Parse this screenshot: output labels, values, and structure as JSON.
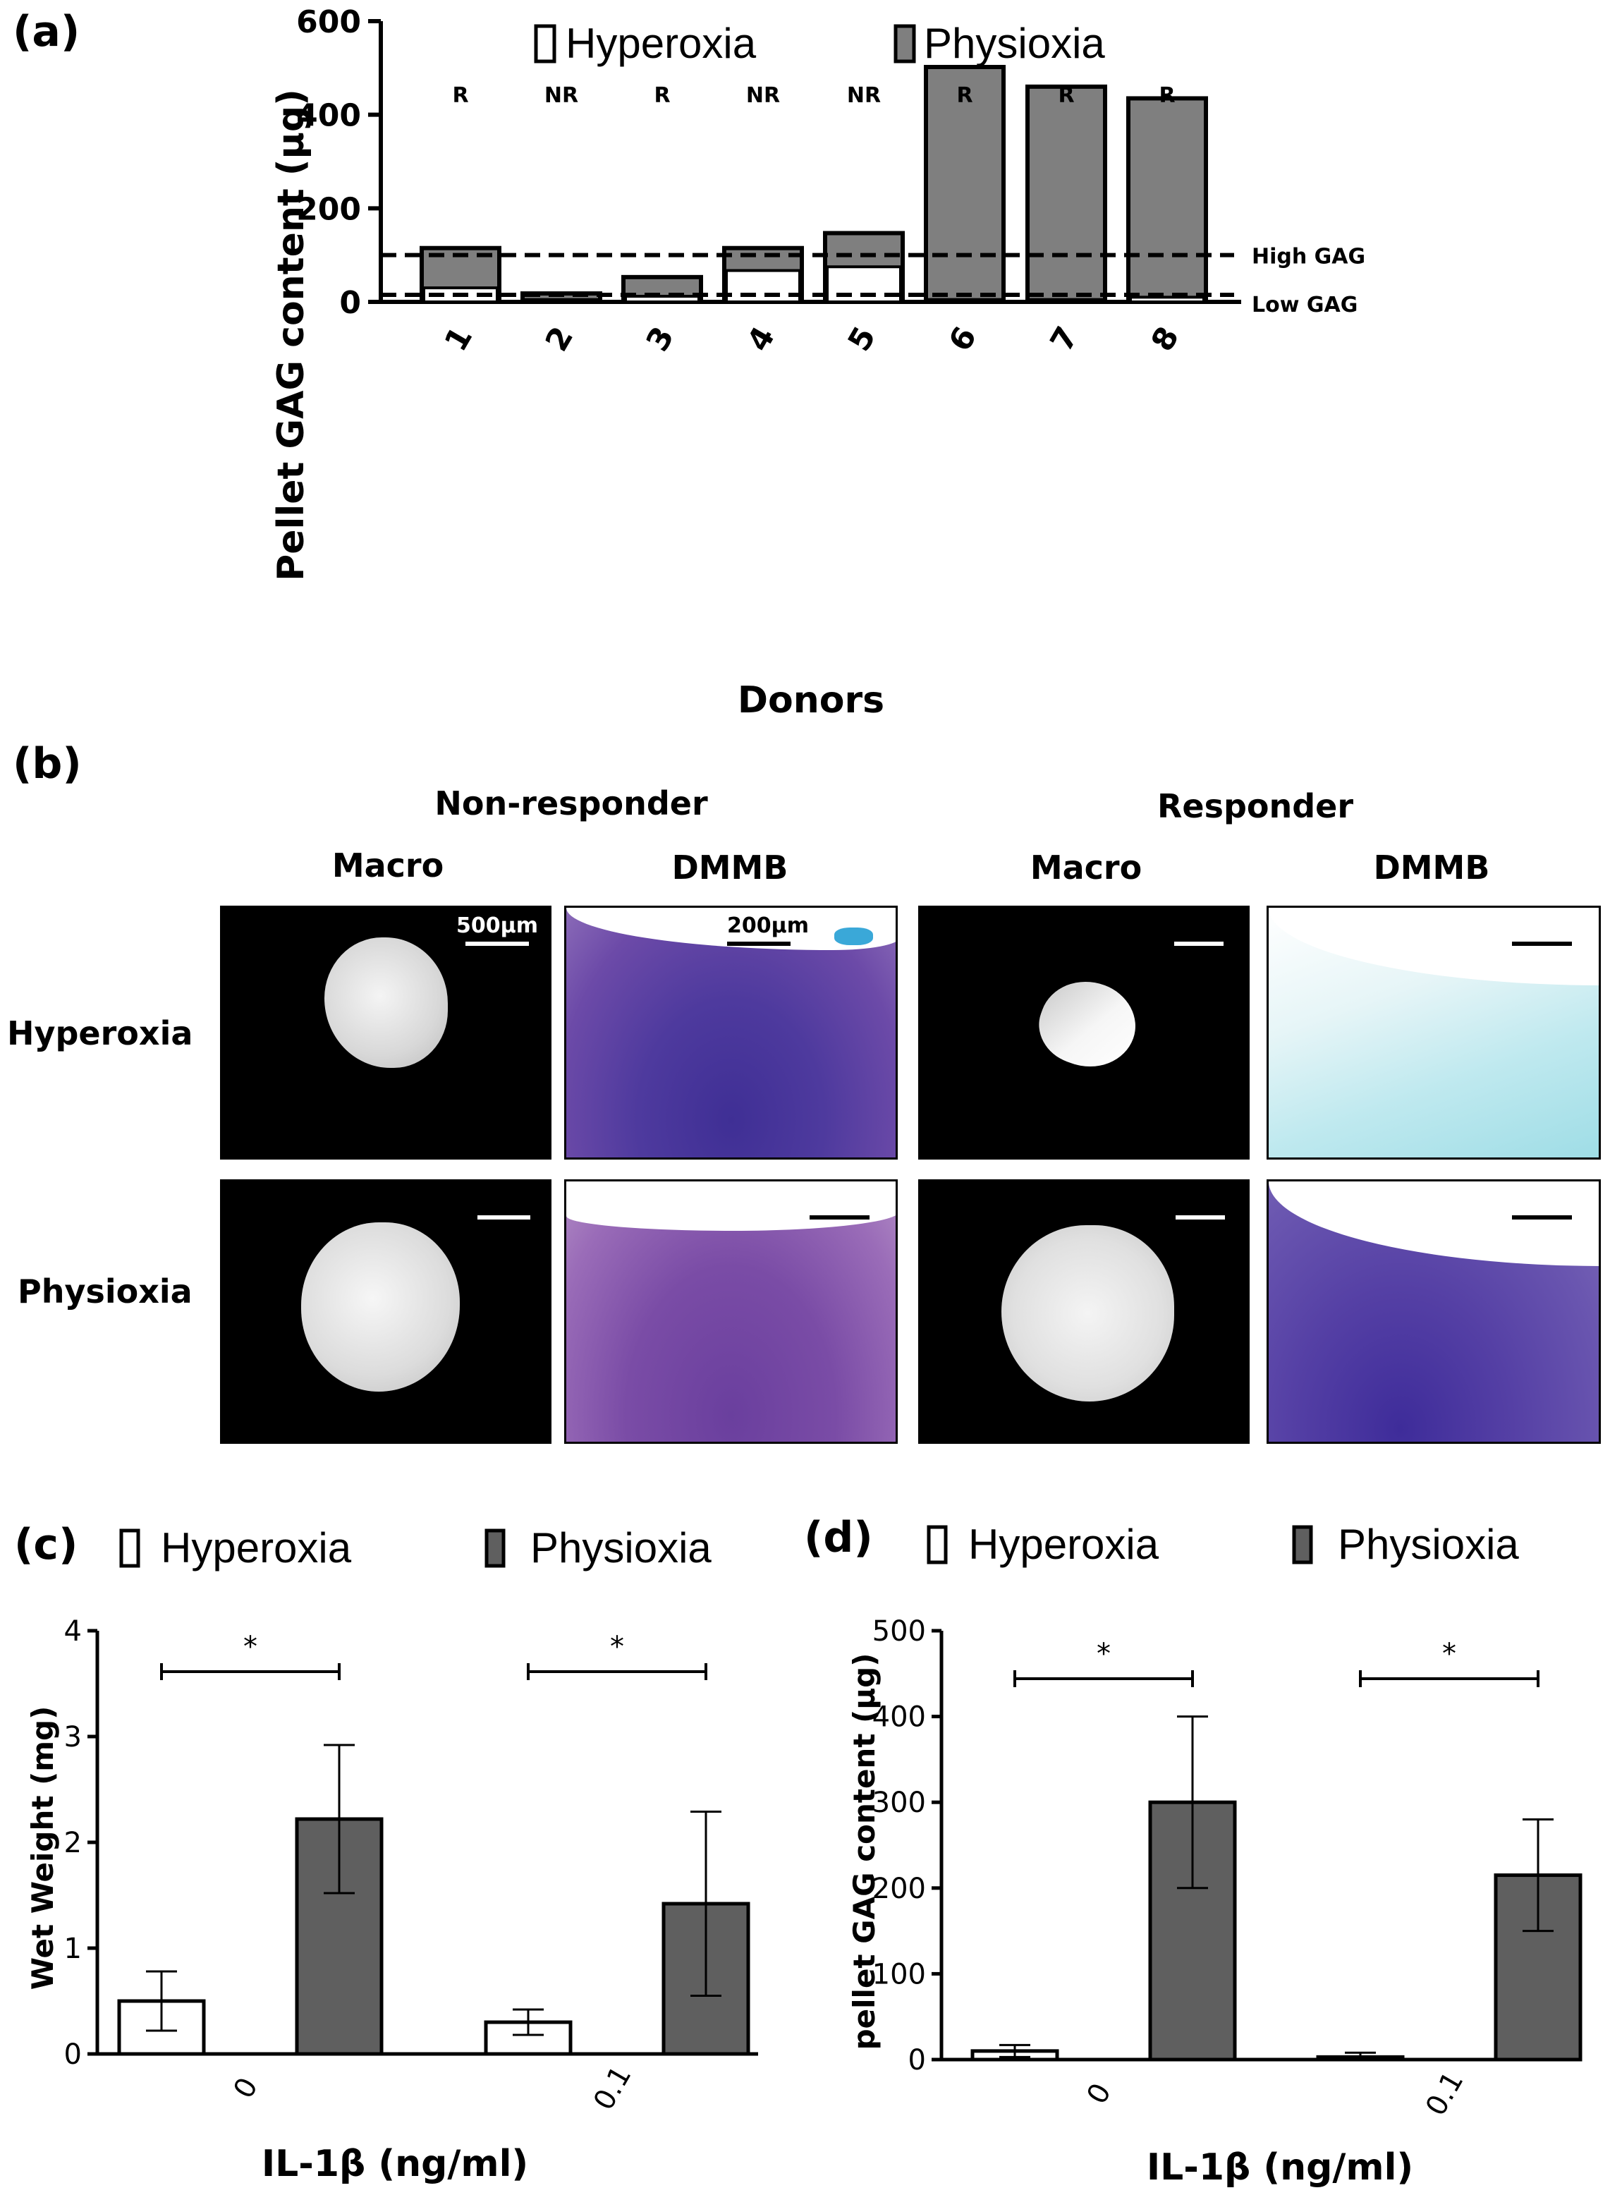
{
  "colors": {
    "physioxia": "#7f7f7f",
    "physioxia_dark": "#5f5f5f",
    "hyperoxia": "#ffffff",
    "dmmb_purple": "#5a3d9e",
    "dmmb_blue": "#a9e3e8"
  },
  "panel_a": {
    "letter": "(a)",
    "legend": {
      "hyperoxia": "Hyperoxia",
      "physioxia": "Physioxia"
    },
    "response_labels": [
      "R",
      "NR",
      "R",
      "NR",
      "NR",
      "R",
      "R",
      "R"
    ],
    "thresholds": {
      "high_label": "High GAG",
      "low_label": "Low GAG"
    }
  },
  "panel_b": {
    "letter": "(b)",
    "group_headers": [
      "Non-responder",
      "Responder"
    ],
    "column_headers": [
      "Macro",
      "DMMB",
      "Macro",
      "DMMB"
    ],
    "row_headers": [
      "Hyperoxia",
      "Physioxia"
    ],
    "scale_bars": {
      "macro": "500μm",
      "dmmb": "200μm"
    }
  },
  "panel_c": {
    "letter": "(c)",
    "legend": {
      "hyperoxia": "Hyperoxia",
      "physioxia": "Physioxia"
    },
    "significance": [
      "*",
      "*"
    ]
  },
  "panel_d": {
    "letter": "(d)",
    "legend": {
      "hyperoxia": "Hyperoxia",
      "physioxia": "Physioxia"
    },
    "significance": [
      "*",
      "*"
    ]
  },
  "chart_data": [
    {
      "type": "bar",
      "stacked": true,
      "categories": [
        "1",
        "2",
        "3",
        "4",
        "5",
        "6",
        "7",
        "8"
      ],
      "series": [
        {
          "name": "Hyperoxia",
          "values": [
            30,
            5,
            12,
            67,
            75,
            5,
            5,
            10
          ]
        },
        {
          "name": "Physioxia",
          "values": [
            115,
            18,
            53,
            115,
            147,
            502,
            460,
            435
          ]
        }
      ],
      "xlabel": "Donors",
      "ylabel": "Pellet GAG content (μg)",
      "ylim": [
        0,
        600
      ],
      "yticks": [
        0,
        200,
        400,
        600
      ],
      "reference_lines": [
        {
          "label": "High GAG",
          "y": 100
        },
        {
          "label": "Low GAG",
          "y": 15
        }
      ]
    },
    {
      "type": "bar",
      "categories": [
        "0",
        "0.1"
      ],
      "series": [
        {
          "name": "Hyperoxia",
          "values": [
            0.5,
            0.3
          ],
          "errors": [
            0.28,
            0.12
          ]
        },
        {
          "name": "Physioxia",
          "values": [
            2.22,
            1.42
          ],
          "errors": [
            0.7,
            0.87
          ]
        }
      ],
      "xlabel": "IL-1β  (ng/ml)",
      "ylabel": "Wet Weight (mg)",
      "ylim": [
        0,
        4
      ],
      "yticks": [
        0,
        1,
        2,
        3,
        4
      ]
    },
    {
      "type": "bar",
      "categories": [
        "0",
        "0.1"
      ],
      "series": [
        {
          "name": "Hyperoxia",
          "values": [
            10,
            3
          ],
          "errors": [
            7,
            5
          ]
        },
        {
          "name": "Physioxia",
          "values": [
            300,
            215
          ],
          "errors": [
            100,
            65
          ]
        }
      ],
      "xlabel": "IL-1β  (ng/ml)",
      "ylabel": "pellet GAG content (μg)",
      "ylim": [
        0,
        500
      ],
      "yticks": [
        0,
        100,
        200,
        300,
        400,
        500
      ]
    }
  ]
}
